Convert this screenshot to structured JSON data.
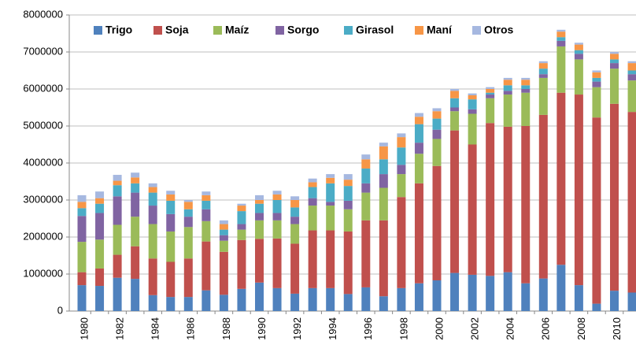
{
  "chart_data": {
    "type": "stacked_bar",
    "categories": [
      "1980",
      null,
      "1982",
      null,
      "1984",
      null,
      "1986",
      null,
      "1988",
      null,
      "1990",
      null,
      "1992",
      null,
      "1994",
      null,
      "1996",
      null,
      "1998",
      null,
      "2000",
      null,
      "2002",
      null,
      "2004",
      null,
      "2006",
      null,
      "2008",
      null,
      "2010",
      null
    ],
    "series": [
      {
        "name": "Trigo",
        "color": "#4f81bd",
        "values": [
          700000,
          680000,
          900000,
          870000,
          430000,
          380000,
          380000,
          560000,
          440000,
          600000,
          770000,
          620000,
          470000,
          620000,
          620000,
          460000,
          640000,
          400000,
          620000,
          750000,
          830000,
          1030000,
          980000,
          950000,
          1050000,
          750000,
          880000,
          1250000,
          700000,
          200000,
          550000,
          500000
        ]
      },
      {
        "name": "Soja",
        "color": "#c0504d",
        "values": [
          350000,
          470000,
          620000,
          880000,
          990000,
          950000,
          1040000,
          1320000,
          1160000,
          1320000,
          1180000,
          1340000,
          1350000,
          1560000,
          1560000,
          1690000,
          1810000,
          2050000,
          2460000,
          2700000,
          3090000,
          3850000,
          3520000,
          4130000,
          3930000,
          4250000,
          4420000,
          4650000,
          5150000,
          5030000,
          5050000,
          4880000
        ]
      },
      {
        "name": "Maíz",
        "color": "#9bbb59",
        "values": [
          820000,
          780000,
          810000,
          800000,
          930000,
          820000,
          850000,
          550000,
          300000,
          280000,
          500000,
          490000,
          530000,
          670000,
          670000,
          600000,
          750000,
          880000,
          620000,
          800000,
          730000,
          520000,
          830000,
          670000,
          870000,
          900000,
          1000000,
          1250000,
          950000,
          820000,
          950000,
          850000
        ]
      },
      {
        "name": "Sorgo",
        "color": "#8064a2",
        "values": [
          700000,
          720000,
          770000,
          650000,
          500000,
          470000,
          280000,
          320000,
          150000,
          150000,
          200000,
          200000,
          200000,
          200000,
          100000,
          230000,
          250000,
          370000,
          250000,
          300000,
          250000,
          100000,
          120000,
          100000,
          100000,
          100000,
          100000,
          150000,
          150000,
          150000,
          150000,
          170000
        ]
      },
      {
        "name": "Girasol",
        "color": "#4bacc6",
        "values": [
          210000,
          250000,
          300000,
          250000,
          350000,
          360000,
          200000,
          230000,
          150000,
          350000,
          250000,
          350000,
          250000,
          300000,
          500000,
          400000,
          400000,
          400000,
          470000,
          500000,
          300000,
          250000,
          270000,
          50000,
          150000,
          100000,
          150000,
          100000,
          100000,
          100000,
          100000,
          100000
        ]
      },
      {
        "name": "Maní",
        "color": "#f79646",
        "values": [
          170000,
          150000,
          120000,
          160000,
          150000,
          170000,
          200000,
          150000,
          150000,
          150000,
          100000,
          150000,
          200000,
          130000,
          150000,
          170000,
          250000,
          350000,
          280000,
          200000,
          200000,
          200000,
          110000,
          100000,
          150000,
          150000,
          150000,
          150000,
          150000,
          150000,
          150000,
          200000
        ]
      },
      {
        "name": "Otros",
        "color": "#a6b8e0",
        "values": [
          180000,
          180000,
          160000,
          130000,
          100000,
          100000,
          50000,
          100000,
          100000,
          50000,
          130000,
          100000,
          100000,
          100000,
          100000,
          150000,
          130000,
          100000,
          100000,
          100000,
          80000,
          50000,
          50000,
          50000,
          50000,
          50000,
          50000,
          50000,
          50000,
          50000,
          50000,
          50000
        ]
      }
    ],
    "ylim": [
      0,
      8000000
    ],
    "yticks": [
      0,
      1000000,
      2000000,
      3000000,
      4000000,
      5000000,
      6000000,
      7000000,
      8000000
    ],
    "grid": true,
    "legend": "top"
  }
}
